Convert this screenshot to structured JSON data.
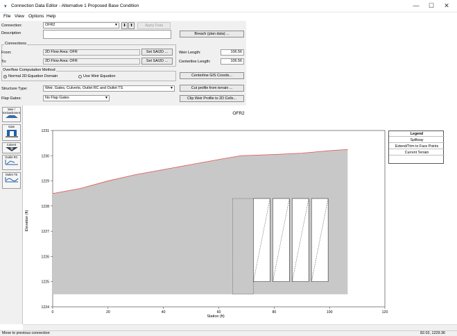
{
  "window": {
    "title": "Connection Data Editor - Alternative 1 Proposed Base Condition",
    "minimize": "—",
    "maximize": "☐",
    "close": "✕"
  },
  "menu": {
    "items": [
      "File",
      "View",
      "Options",
      "Help"
    ]
  },
  "form": {
    "connection_label": "Connection:",
    "connection_value": "OFR2",
    "apply_data": "Apply Data",
    "description_label": "Description",
    "description_value": "",
    "breach_button": "Breach (plan data) ...",
    "connections_group": "Connections",
    "from_label": "From:",
    "from_value": "2D Flow Area: OFR",
    "to_label": "To:",
    "to_value": "2D Flow Area: OFR",
    "set_sa_from": "Set SA/2D ...",
    "set_sa_to": "Set SA/2D ...",
    "weir_length_label": "Weir Length:",
    "weir_length_value": "106.56",
    "centerline_length_label": "Centerline Length:",
    "centerline_length_value": "106.56",
    "overflow_group": "Overflow Computation Method",
    "option_normal": "Normal 2D Equation Domain",
    "option_weir": "Use Weir Equation",
    "centerline_button": "Centerline GIS Coords...",
    "structure_label": "Structure Type:",
    "structure_value": "Weir, Gates, Culverts, Outlet RC and Outlet TS",
    "cut_profile_button": "Cut profile from terrain ...",
    "flap_label": "Flap Gates:",
    "flap_value": "No Flap Gates",
    "clip_button": "Clip Weir Profile to 2D Cells..."
  },
  "sidebar": {
    "buttons": [
      {
        "label": "Weir / Embankment",
        "icon": "weir-icon"
      },
      {
        "label": "Gate",
        "icon": "gate-icon"
      },
      {
        "label": "Culvert",
        "icon": "culvert-icon"
      },
      {
        "label": "Outlet RC",
        "icon": "outlet-rc-icon"
      },
      {
        "label": "Outlet TS",
        "icon": "outlet-ts-icon"
      }
    ]
  },
  "colors": {
    "terrain_fill": "#c8c8c8",
    "terrain_line": "#e05050",
    "gate_fill": "#ffffff"
  },
  "chart_data": {
    "type": "area",
    "title": "OFR2",
    "xlabel": "Station (ft)",
    "ylabel": "Elevation (ft)",
    "xlim": [
      0,
      120
    ],
    "ylim": [
      1224,
      1231
    ],
    "xticks": [
      0,
      20,
      40,
      60,
      80,
      100,
      120
    ],
    "yticks": [
      1224,
      1225,
      1226,
      1227,
      1228,
      1229,
      1230,
      1231
    ],
    "weir_profile": {
      "x": [
        0,
        10,
        20,
        30,
        40,
        50,
        60,
        68,
        80,
        90,
        100,
        106.56
      ],
      "y": [
        1228.5,
        1228.7,
        1229.0,
        1229.25,
        1229.45,
        1229.65,
        1229.85,
        1230.0,
        1230.05,
        1230.1,
        1230.2,
        1230.25
      ]
    },
    "bottom_elevation": 1224.5,
    "gates": [
      {
        "x_start": 72.5,
        "x_end": 78.5,
        "bottom": 1225.0,
        "top": 1228.3
      },
      {
        "x_start": 79.5,
        "x_end": 85.5,
        "bottom": 1225.0,
        "top": 1228.3
      },
      {
        "x_start": 86.5,
        "x_end": 92.5,
        "bottom": 1225.0,
        "top": 1228.3
      },
      {
        "x_start": 93.5,
        "x_end": 99.5,
        "bottom": 1225.0,
        "top": 1228.3
      }
    ],
    "gate_frame": {
      "x_start": 65,
      "x_end": 72.5,
      "bottom": 1224.5,
      "top": 1228.3
    },
    "legend": {
      "title": "Legend",
      "entries": [
        "Spillway",
        "Extend/Trim to Face Points",
        "Current Terrain"
      ],
      "placement": "top-right"
    },
    "grid": false
  },
  "status": {
    "message": "Move to previous connection",
    "coords": "82.02, 1229.36"
  }
}
